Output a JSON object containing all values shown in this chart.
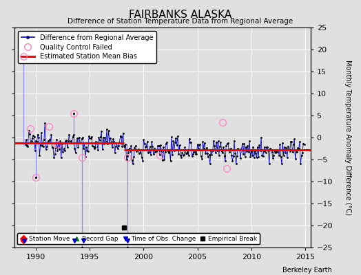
{
  "title": "FAIRBANKS ALASKA",
  "subtitle": "Difference of Station Temperature Data from Regional Average",
  "ylabel_right": "Monthly Temperature Anomaly Difference (°C)",
  "xlim": [
    1988.0,
    2015.5
  ],
  "ylim": [
    -25,
    25
  ],
  "yticks": [
    -25,
    -20,
    -15,
    -10,
    -5,
    0,
    5,
    10,
    15,
    20,
    25
  ],
  "xticks": [
    1990,
    1995,
    2000,
    2005,
    2010,
    2015
  ],
  "background_color": "#e0e0e0",
  "grid_color": "#ffffff",
  "bias_seg1": {
    "x_start": 1988.0,
    "x_end": 1998.2,
    "y": -1.2
  },
  "bias_seg2": {
    "x_start": 1998.2,
    "x_end": 2015.5,
    "y": -2.8
  },
  "spike_events": [
    {
      "t": 1988.83,
      "v_top": 18.5,
      "v_base": -1.5
    },
    {
      "t": 1990.0,
      "v_top": -9.0,
      "v_base": -1.5
    },
    {
      "t": 1993.5,
      "v_top": 5.5,
      "v_base": -1.5
    },
    {
      "t": 1994.3,
      "v_top": -25.0,
      "v_base": -1.5
    },
    {
      "t": 1998.5,
      "v_top": -25.0,
      "v_base": -1.5
    }
  ],
  "qc_failed": [
    {
      "t": 1988.83,
      "v": 18.5
    },
    {
      "t": 1989.5,
      "v": 2.0
    },
    {
      "t": 1990.0,
      "v": -9.0
    },
    {
      "t": 1991.2,
      "v": 2.5
    },
    {
      "t": 1992.0,
      "v": -1.5
    },
    {
      "t": 1993.5,
      "v": 5.5
    },
    {
      "t": 1994.3,
      "v": -4.5
    },
    {
      "t": 1998.5,
      "v": -4.5
    },
    {
      "t": 2001.5,
      "v": -4.0
    },
    {
      "t": 2007.3,
      "v": 3.5
    },
    {
      "t": 2007.7,
      "v": -7.0
    }
  ],
  "empirical_break_t": 1998.2,
  "empirical_break_v": -20.5,
  "station_move_t": 1988.83,
  "obs_change_ts": [
    1988.9,
    1993.6,
    1994.4,
    1998.5
  ],
  "footer_text": "Berkeley Earth",
  "legend1_labels": [
    "Difference from Regional Average",
    "Quality Control Failed",
    "Estimated Station Mean Bias"
  ],
  "legend2_labels": [
    "Station Move",
    "Record Gap",
    "Time of Obs. Change",
    "Empirical Break"
  ],
  "seed": 12345
}
